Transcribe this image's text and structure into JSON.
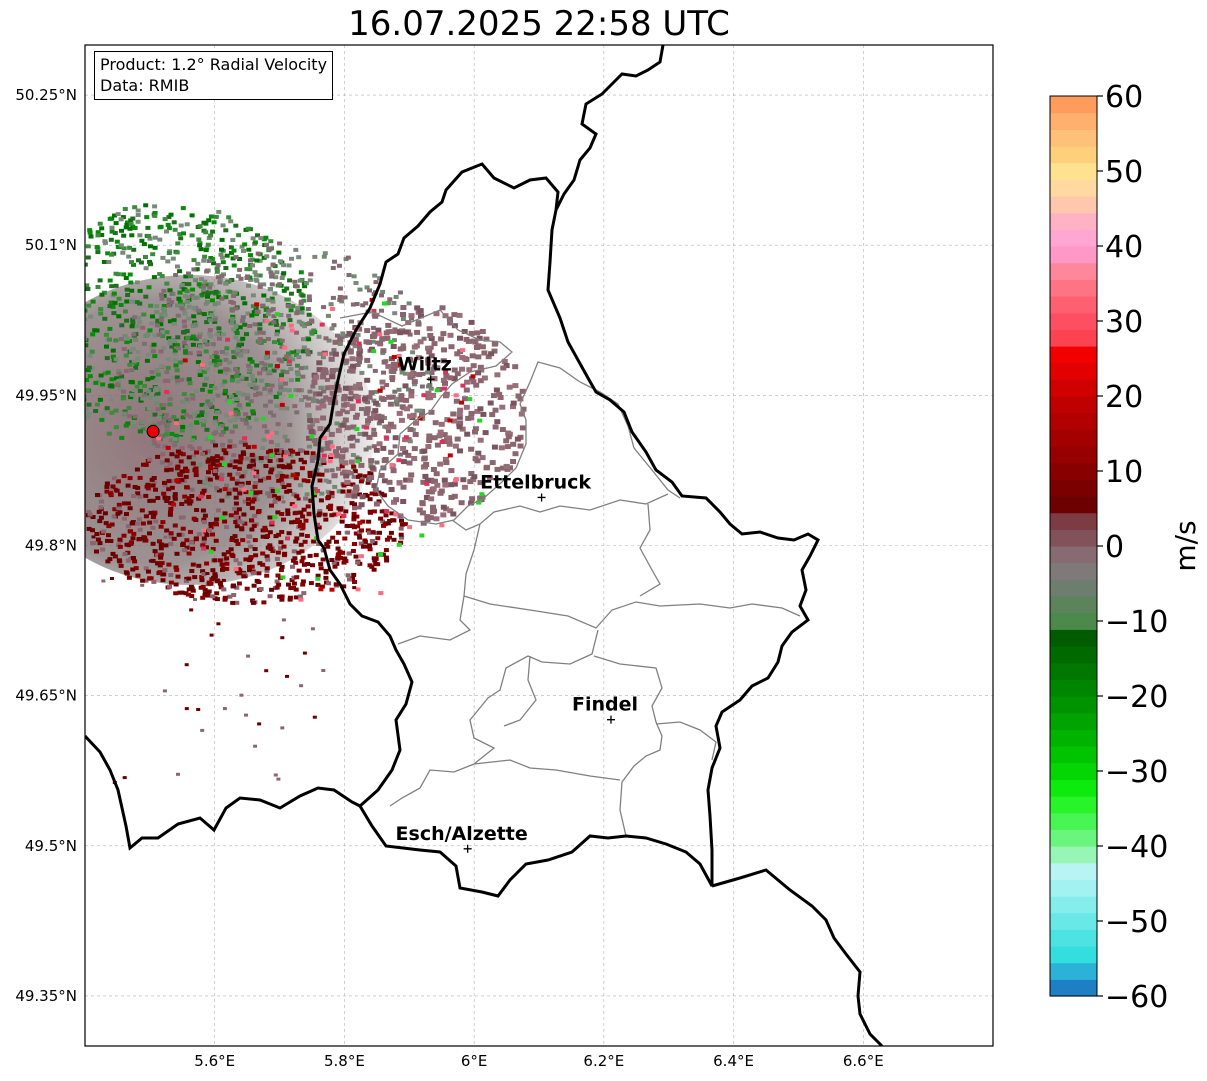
{
  "title": "16.07.2025 22:58 UTC",
  "info": {
    "product": "Product: 1.2° Radial Velocity",
    "source": "Data: RMIB"
  },
  "map": {
    "lon_range": [
      5.4,
      6.8
    ],
    "lat_range": [
      49.3,
      50.3
    ],
    "lon_ticks": [
      {
        "value": 5.6,
        "label": "5.6°E"
      },
      {
        "value": 5.8,
        "label": "5.8°E"
      },
      {
        "value": 6.0,
        "label": "6°E"
      },
      {
        "value": 6.2,
        "label": "6.2°E"
      },
      {
        "value": 6.4,
        "label": "6.4°E"
      },
      {
        "value": 6.6,
        "label": "6.6°E"
      }
    ],
    "lat_ticks": [
      {
        "value": 50.25,
        "label": "50.25°N"
      },
      {
        "value": 50.1,
        "label": "50.1°N"
      },
      {
        "value": 49.95,
        "label": "49.95°N"
      },
      {
        "value": 49.8,
        "label": "49.8°N"
      },
      {
        "value": 49.65,
        "label": "49.65°N"
      },
      {
        "value": 49.5,
        "label": "49.5°N"
      },
      {
        "value": 49.35,
        "label": "49.35°N"
      }
    ],
    "radar_site": {
      "lon": 5.505,
      "lat": 49.914,
      "color": "#ee0000"
    },
    "cities": [
      {
        "name": "Wiltz",
        "lon": 5.933,
        "lat": 49.966
      },
      {
        "name": "Ettelbruck",
        "lon": 6.104,
        "lat": 49.848
      },
      {
        "name": "Findel",
        "lon": 6.211,
        "lat": 49.626
      },
      {
        "name": "Esch/Alzette",
        "lon": 5.99,
        "lat": 49.497
      }
    ]
  },
  "colorbar": {
    "min": -60,
    "max": 60,
    "unit_label": "m/s",
    "ticks": [
      {
        "value": 60,
        "label": "60"
      },
      {
        "value": 50,
        "label": "50"
      },
      {
        "value": 40,
        "label": "40"
      },
      {
        "value": 30,
        "label": "30"
      },
      {
        "value": 20,
        "label": "20"
      },
      {
        "value": 10,
        "label": "10"
      },
      {
        "value": 0,
        "label": "0"
      },
      {
        "value": -10,
        "label": "−10"
      },
      {
        "value": -20,
        "label": "−20"
      },
      {
        "value": -30,
        "label": "−30"
      },
      {
        "value": -40,
        "label": "−40"
      },
      {
        "value": -50,
        "label": "−50"
      },
      {
        "value": -60,
        "label": "−60"
      }
    ],
    "colors": [
      "#1e7fc4",
      "#2bb2d6",
      "#33dede",
      "#4ce3e3",
      "#69e8e8",
      "#86eded",
      "#a3f2f2",
      "#b9f4f4",
      "#97f5b5",
      "#6af57d",
      "#48f553",
      "#27f529",
      "#0dea0d",
      "#04d604",
      "#00c400",
      "#00b300",
      "#00a300",
      "#009300",
      "#008500",
      "#007800",
      "#006a00",
      "#005c00",
      "#4b8a4b",
      "#5c845c",
      "#6e7e6e",
      "#7f7a7a",
      "#866b72",
      "#82525b",
      "#7d3b44",
      "#6d0000",
      "#7a0000",
      "#880000",
      "#960000",
      "#a40000",
      "#b20000",
      "#c00000",
      "#d00000",
      "#e20000",
      "#f20000",
      "#fb4351",
      "#fe4f62",
      "#fe6071",
      "#fe7484",
      "#ff879b",
      "#ff98c6",
      "#ffa7d2",
      "#ffb2c5",
      "#ffc7ae",
      "#ffd9a0",
      "#ffe28f",
      "#ffd07c",
      "#ffc078",
      "#ffb06c",
      "#ff9c5c"
    ]
  },
  "colors": {
    "country_border": "#000000",
    "canton_border": "#808080",
    "grid": "#b0b0b0",
    "radar_west_pos": "#6b0000",
    "radar_inbound": "#007200",
    "radar_gray": "#7a8a7a",
    "radar_pinkgray": "#8b6570"
  }
}
